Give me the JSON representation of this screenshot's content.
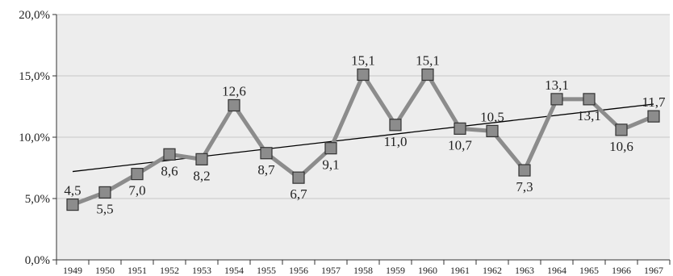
{
  "chart_data": {
    "type": "line",
    "title": "",
    "xlabel": "",
    "ylabel": "",
    "ylim": [
      0,
      20
    ],
    "y_ticks": [
      "0,0%",
      "5,0%",
      "10,0%",
      "15,0%",
      "20,0%"
    ],
    "y_tick_values": [
      0,
      5,
      10,
      15,
      20
    ],
    "grid": true,
    "legend": "none",
    "categories": [
      "1949",
      "1950",
      "1951",
      "1952",
      "1953",
      "1954",
      "1955",
      "1956",
      "1957",
      "1958",
      "1959",
      "1960",
      "1961",
      "1962",
      "1963",
      "1964",
      "1965",
      "1966",
      "1967"
    ],
    "series": [
      {
        "values": [
          4.5,
          5.5,
          7.0,
          8.6,
          8.2,
          12.6,
          8.7,
          6.7,
          9.1,
          15.1,
          11.0,
          15.1,
          10.7,
          10.5,
          7.3,
          13.1,
          13.1,
          10.6,
          11.7
        ],
        "labels": [
          "4,5",
          "5,5",
          "7,0",
          "8,6",
          "8,2",
          "12,6",
          "8,7",
          "6,7",
          "9,1",
          "15,1",
          "11,0",
          "15,1",
          "10,7",
          "10,5",
          "7,3",
          "13,1",
          "13,1",
          "10,6",
          "11,7"
        ],
        "label_positions": [
          "above",
          "below",
          "below",
          "below",
          "below",
          "above",
          "below",
          "below",
          "below",
          "above",
          "below",
          "above",
          "below",
          "above",
          "below",
          "above",
          "below",
          "below",
          "above"
        ],
        "color": "#8c8c8c",
        "marker_color": "#8c8c8c"
      }
    ],
    "trendline": {
      "start": 7.2,
      "end": 12.7,
      "color": "#000000"
    },
    "plot_background": "#ededed",
    "grid_color": "#c8c8c8"
  }
}
